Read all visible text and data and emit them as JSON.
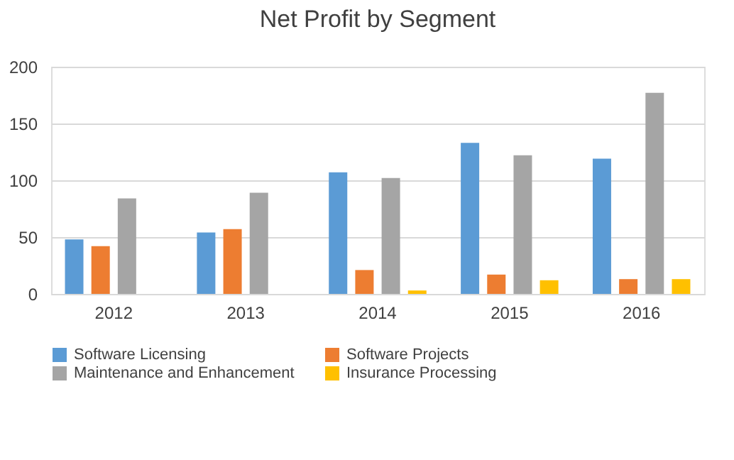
{
  "chart_data": {
    "type": "bar",
    "title": "Net Profit by Segment",
    "categories": [
      "2012",
      "2013",
      "2014",
      "2015",
      "2016"
    ],
    "series": [
      {
        "name": "Software Licensing",
        "color": "#5b9bd5",
        "values": [
          48,
          54,
          107,
          133,
          119
        ]
      },
      {
        "name": "Software Projects",
        "color": "#ed7d31",
        "values": [
          42,
          57,
          21,
          17,
          13
        ]
      },
      {
        "name": "Maintenance and Enhancement",
        "color": "#a5a5a5",
        "values": [
          84,
          89,
          102,
          122,
          177
        ]
      },
      {
        "name": "Insurance Processing",
        "color": "#ffc000",
        "values": [
          null,
          null,
          3,
          12,
          13
        ]
      }
    ],
    "ylim": [
      0,
      200
    ],
    "yticks": [
      0,
      50,
      100,
      150,
      200
    ],
    "grid": "y",
    "legend": "bottom"
  }
}
